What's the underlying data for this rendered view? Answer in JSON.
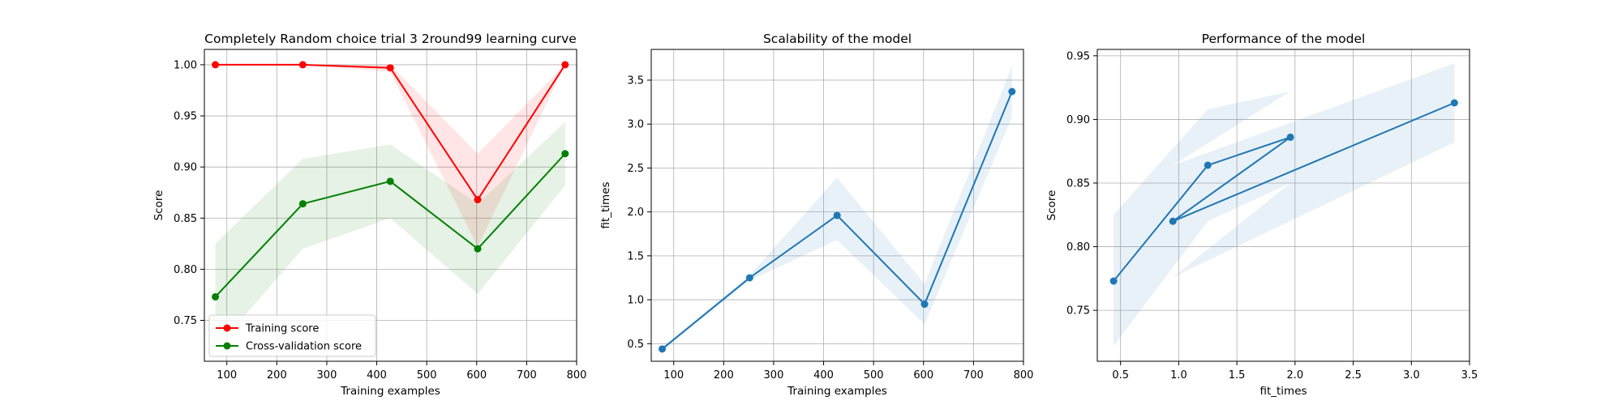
{
  "chart_data": [
    {
      "type": "line",
      "title": "Completely Random choice trial 3 2round99 learning curve",
      "xlabel": "Training examples",
      "ylabel": "Score",
      "xlim": [
        55,
        800
      ],
      "ylim": [
        0.71,
        1.015
      ],
      "xticks": [
        100,
        200,
        300,
        400,
        500,
        600,
        700,
        800
      ],
      "yticks": [
        0.75,
        0.8,
        0.85,
        0.9,
        0.95,
        1.0
      ],
      "xtick_labels": [
        "100",
        "200",
        "300",
        "400",
        "500",
        "600",
        "700",
        "800"
      ],
      "ytick_labels": [
        "0.75",
        "0.80",
        "0.85",
        "0.90",
        "0.95",
        "1.00"
      ],
      "grid": true,
      "legend": "lower-left",
      "series": [
        {
          "name": "Training score",
          "color": "#ff0000",
          "x": [
            77,
            252,
            427,
            602,
            777
          ],
          "y": [
            1.0,
            1.0,
            0.997,
            0.868,
            1.0
          ],
          "band_low": [
            1.0,
            1.0,
            0.993,
            0.822,
            1.0
          ],
          "band_high": [
            1.0,
            1.0,
            1.0,
            0.913,
            1.0
          ]
        },
        {
          "name": "Cross-validation score",
          "color": "#008000",
          "x": [
            77,
            252,
            427,
            602,
            777
          ],
          "y": [
            0.773,
            0.864,
            0.886,
            0.82,
            0.913
          ],
          "band_low": [
            0.722,
            0.82,
            0.85,
            0.776,
            0.882
          ],
          "band_high": [
            0.825,
            0.908,
            0.922,
            0.864,
            0.944
          ]
        }
      ]
    },
    {
      "type": "line",
      "title": "Scalability of the model",
      "xlabel": "Training examples",
      "ylabel": "fit_times",
      "xlim": [
        55,
        800
      ],
      "ylim": [
        0.3,
        3.85
      ],
      "xticks": [
        100,
        200,
        300,
        400,
        500,
        600,
        700,
        800
      ],
      "yticks": [
        0.5,
        1.0,
        1.5,
        2.0,
        2.5,
        3.0,
        3.5
      ],
      "xtick_labels": [
        "100",
        "200",
        "300",
        "400",
        "500",
        "600",
        "700",
        "800"
      ],
      "ytick_labels": [
        "0.5",
        "1.0",
        "1.5",
        "2.0",
        "2.5",
        "3.0",
        "3.5"
      ],
      "grid": true,
      "series": [
        {
          "color": "#1f77b4",
          "x": [
            77,
            252,
            427,
            602,
            777
          ],
          "y": [
            0.44,
            1.25,
            1.96,
            0.95,
            3.37
          ],
          "band_low": [
            0.42,
            1.22,
            1.68,
            0.72,
            3.08
          ],
          "band_high": [
            0.46,
            1.28,
            2.39,
            1.18,
            3.66
          ]
        }
      ]
    },
    {
      "type": "line",
      "title": "Performance of the model",
      "xlabel": "fit_times",
      "ylabel": "Score",
      "xlim": [
        0.3,
        3.5
      ],
      "ylim": [
        0.71,
        0.955
      ],
      "xticks": [
        0.5,
        1.0,
        1.5,
        2.0,
        2.5,
        3.0,
        3.5
      ],
      "yticks": [
        0.75,
        0.8,
        0.85,
        0.9,
        0.95
      ],
      "xtick_labels": [
        "0.5",
        "1.0",
        "1.5",
        "2.0",
        "2.5",
        "3.0",
        "3.5"
      ],
      "ytick_labels": [
        "0.75",
        "0.80",
        "0.85",
        "0.90",
        "0.95"
      ],
      "grid": true,
      "series": [
        {
          "color": "#1f77b4",
          "x": [
            0.44,
            1.25,
            1.96,
            0.95,
            3.37
          ],
          "y": [
            0.773,
            0.864,
            0.886,
            0.82,
            0.913
          ],
          "band_low": [
            0.722,
            0.82,
            0.85,
            0.776,
            0.882
          ],
          "band_high": [
            0.825,
            0.908,
            0.922,
            0.864,
            0.944
          ]
        }
      ]
    }
  ]
}
